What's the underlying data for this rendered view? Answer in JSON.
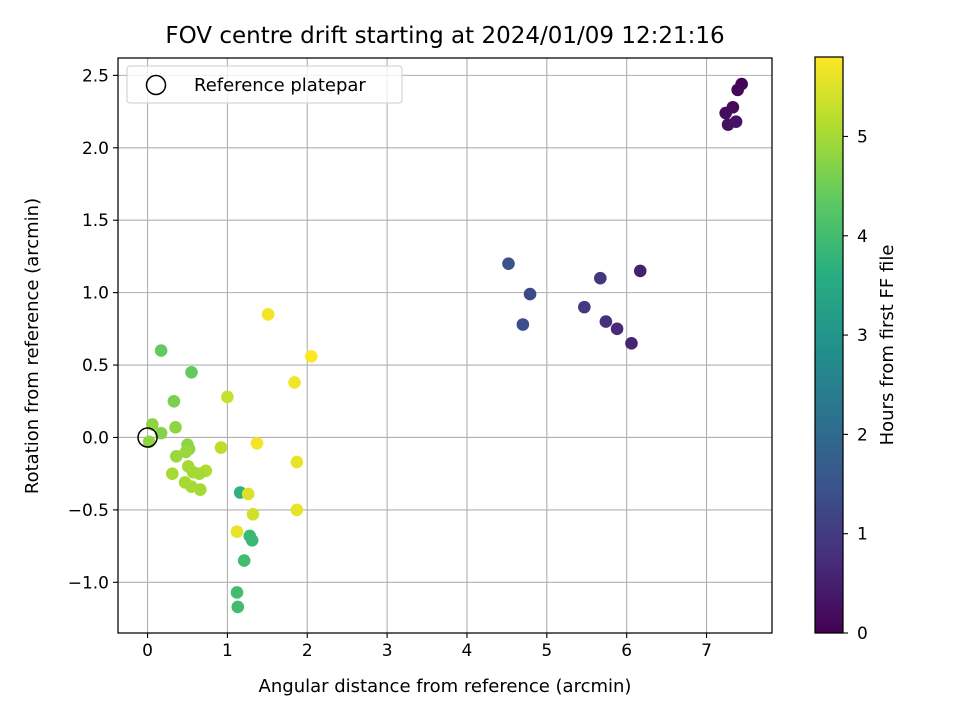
{
  "chart_data": {
    "type": "scatter",
    "title": "FOV centre drift starting at 2024/01/09 12:21:16",
    "xlabel": "Angular distance from reference (arcmin)",
    "ylabel": "Rotation from reference (arcmin)",
    "xlim": [
      -0.37,
      7.82
    ],
    "ylim": [
      -1.35,
      2.62
    ],
    "xticks": [
      0,
      1,
      2,
      3,
      4,
      5,
      6,
      7
    ],
    "xtick_labels": [
      "0",
      "1",
      "2",
      "3",
      "4",
      "5",
      "6",
      "7"
    ],
    "yticks": [
      -1.0,
      -0.5,
      0.0,
      0.5,
      1.0,
      1.5,
      2.0,
      2.5
    ],
    "ytick_labels": [
      "−1.0",
      "−0.5",
      "0.0",
      "0.5",
      "1.0",
      "1.5",
      "2.0",
      "2.5"
    ],
    "grid": true,
    "legend": {
      "position": "top-left",
      "entries": [
        "Reference platepar"
      ]
    },
    "reference_point": {
      "x": 0.0,
      "y": 0.0,
      "label": "Reference platepar",
      "marker": "open-circle"
    },
    "colorbar": {
      "label": "Hours from first FF file",
      "colormap": "viridis",
      "range": [
        0,
        5.8
      ],
      "ticks": [
        0,
        1,
        2,
        3,
        4,
        5
      ],
      "tick_labels": [
        "0",
        "1",
        "2",
        "3",
        "4",
        "5"
      ]
    },
    "points": [
      {
        "x": 7.44,
        "y": 2.44,
        "c": 0.05
      },
      {
        "x": 7.39,
        "y": 2.4,
        "c": 0.1
      },
      {
        "x": 7.33,
        "y": 2.28,
        "c": 0.15
      },
      {
        "x": 7.24,
        "y": 2.24,
        "c": 0.2
      },
      {
        "x": 7.27,
        "y": 2.16,
        "c": 0.25
      },
      {
        "x": 7.37,
        "y": 2.18,
        "c": 0.3
      },
      {
        "x": 6.17,
        "y": 1.15,
        "c": 0.5
      },
      {
        "x": 6.06,
        "y": 0.65,
        "c": 0.6
      },
      {
        "x": 5.88,
        "y": 0.75,
        "c": 0.7
      },
      {
        "x": 5.74,
        "y": 0.8,
        "c": 0.8
      },
      {
        "x": 5.67,
        "y": 1.1,
        "c": 0.9
      },
      {
        "x": 5.47,
        "y": 0.9,
        "c": 1.0
      },
      {
        "x": 4.79,
        "y": 0.99,
        "c": 1.3
      },
      {
        "x": 4.7,
        "y": 0.78,
        "c": 1.4
      },
      {
        "x": 4.52,
        "y": 1.2,
        "c": 1.5
      },
      {
        "x": 1.16,
        "y": -0.38,
        "c": 3.7
      },
      {
        "x": 1.28,
        "y": -0.68,
        "c": 3.9
      },
      {
        "x": 1.31,
        "y": -0.71,
        "c": 3.9
      },
      {
        "x": 1.21,
        "y": -0.85,
        "c": 4.0
      },
      {
        "x": 1.12,
        "y": -1.07,
        "c": 4.0
      },
      {
        "x": 1.13,
        "y": -1.17,
        "c": 4.0
      },
      {
        "x": 0.17,
        "y": 0.6,
        "c": 4.4
      },
      {
        "x": 0.55,
        "y": 0.45,
        "c": 4.4
      },
      {
        "x": 0.33,
        "y": 0.25,
        "c": 4.6
      },
      {
        "x": 0.35,
        "y": 0.07,
        "c": 4.8
      },
      {
        "x": 0.06,
        "y": 0.09,
        "c": 4.8
      },
      {
        "x": 0.17,
        "y": 0.03,
        "c": 4.7
      },
      {
        "x": 0.02,
        "y": -0.03,
        "c": 4.8
      },
      {
        "x": 0.5,
        "y": -0.05,
        "c": 4.8
      },
      {
        "x": 0.52,
        "y": -0.08,
        "c": 4.8
      },
      {
        "x": 0.48,
        "y": -0.1,
        "c": 4.9
      },
      {
        "x": 0.36,
        "y": -0.13,
        "c": 4.9
      },
      {
        "x": 0.51,
        "y": -0.2,
        "c": 5.0
      },
      {
        "x": 0.57,
        "y": -0.24,
        "c": 5.0
      },
      {
        "x": 0.31,
        "y": -0.25,
        "c": 5.0
      },
      {
        "x": 0.73,
        "y": -0.23,
        "c": 5.1
      },
      {
        "x": 0.65,
        "y": -0.25,
        "c": 5.0
      },
      {
        "x": 0.47,
        "y": -0.31,
        "c": 5.0
      },
      {
        "x": 0.55,
        "y": -0.34,
        "c": 5.0
      },
      {
        "x": 0.66,
        "y": -0.36,
        "c": 5.0
      },
      {
        "x": 0.92,
        "y": -0.07,
        "c": 5.2
      },
      {
        "x": 1.0,
        "y": 0.28,
        "c": 5.3
      },
      {
        "x": 1.26,
        "y": -0.39,
        "c": 5.5
      },
      {
        "x": 1.32,
        "y": -0.53,
        "c": 5.4
      },
      {
        "x": 1.12,
        "y": -0.65,
        "c": 5.6
      },
      {
        "x": 1.37,
        "y": -0.04,
        "c": 5.7
      },
      {
        "x": 1.51,
        "y": 0.85,
        "c": 5.7
      },
      {
        "x": 1.84,
        "y": 0.38,
        "c": 5.7
      },
      {
        "x": 2.05,
        "y": 0.56,
        "c": 5.8
      },
      {
        "x": 1.87,
        "y": -0.17,
        "c": 5.6
      },
      {
        "x": 1.87,
        "y": -0.5,
        "c": 5.6
      }
    ]
  }
}
